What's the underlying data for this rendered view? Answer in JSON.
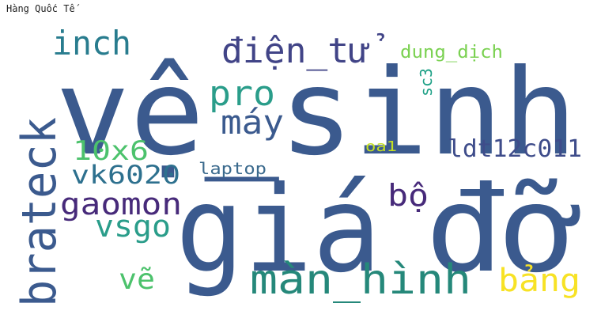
{
  "heading": "Hàng Quốc Tế",
  "words": [
    {
      "text": "vệ_sinh",
      "color": "#3b5a8e"
    },
    {
      "text": "giá",
      "color": "#3b5a8e"
    },
    {
      "text": "đỡ",
      "color": "#3b5a8e"
    },
    {
      "text": "brateck",
      "color": "#3b5a8e"
    },
    {
      "text": "màn_hình",
      "color": "#25887a"
    },
    {
      "text": "điện_tử",
      "color": "#414487"
    },
    {
      "text": "inch",
      "color": "#287c8e"
    },
    {
      "text": "pro",
      "color": "#2a9d8a"
    },
    {
      "text": "máy",
      "color": "#3b5a8e"
    },
    {
      "text": "10x6",
      "color": "#4cc26c"
    },
    {
      "text": "vk6020",
      "color": "#2d708e"
    },
    {
      "text": "gaomon",
      "color": "#472a7a"
    },
    {
      "text": "vsgo",
      "color": "#2a9d8a"
    },
    {
      "text": "vẽ",
      "color": "#4cc26c"
    },
    {
      "text": "bộ",
      "color": "#472a7a"
    },
    {
      "text": "bảng",
      "color": "#f7e225"
    },
    {
      "text": "ldt12c011",
      "color": "#3e4c8a"
    },
    {
      "text": "laptop",
      "color": "#3b6a8d"
    },
    {
      "text": "dung_dịch",
      "color": "#7ad151"
    },
    {
      "text": "sc3",
      "color": "#1fa187"
    },
    {
      "text": "oa1",
      "color": "#c5e021"
    }
  ]
}
